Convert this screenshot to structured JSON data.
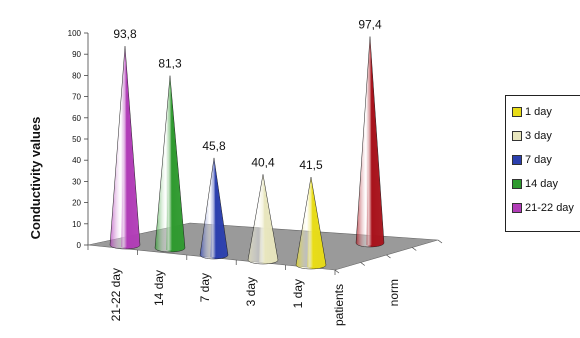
{
  "chart_data": {
    "type": "bar",
    "title": "",
    "ylabel": "Conductivity values",
    "xlabel": "",
    "ylim": [
      0,
      100
    ],
    "yticks": [
      0,
      10,
      20,
      30,
      40,
      50,
      60,
      70,
      80,
      90,
      100
    ],
    "categories": [
      "21-22 day",
      "14 day",
      "7 day",
      "3 day",
      "1 day",
      "norm"
    ],
    "group_labels": [
      "patients"
    ],
    "values": [
      93.8,
      81.3,
      45.8,
      40.4,
      41.5,
      97.4
    ],
    "value_labels": [
      "93,8",
      "81,3",
      "45,8",
      "40,4",
      "41,5",
      "97,4"
    ],
    "colors": [
      "#b13cb7",
      "#2f9a2f",
      "#2b3fae",
      "#e8e6be",
      "#e8dc17",
      "#a8121b"
    ],
    "legend": {
      "placement": "right",
      "entries": [
        {
          "label": "1  day",
          "color": "#e8dc17"
        },
        {
          "label": "3 day",
          "color": "#e8e6be"
        },
        {
          "label": "7 day",
          "color": "#2b3fae"
        },
        {
          "label": "14 day",
          "color": "#2f9a2f"
        },
        {
          "label": "21-22 day",
          "color": "#b13cb7"
        }
      ]
    },
    "grid": false,
    "floor_color": "#9a9a9a"
  }
}
